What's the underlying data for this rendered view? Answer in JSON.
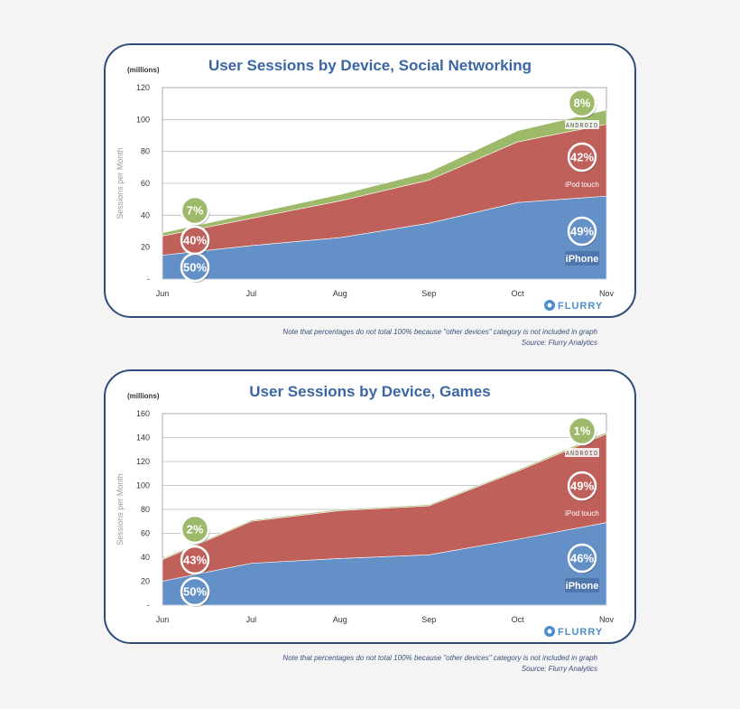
{
  "colors": {
    "iphone": "#6490c8",
    "ipod": "#c0605a",
    "android": "#9dba6a",
    "border": "#2e4d7b",
    "title": "#3b66a3"
  },
  "footnote": {
    "note": "Note that percentages  do not total 100% because  \"other devices\"  category is not included  in graph",
    "source": "Source: Flurry Analytics"
  },
  "chart_data": [
    {
      "type": "area",
      "stacked": true,
      "title": "User Sessions by Device, Social Networking",
      "unit_label": "(millions)",
      "ylabel": "Sessions per Month",
      "ylim": [
        0,
        120
      ],
      "yticks": [
        "-",
        "20",
        "40",
        "60",
        "80",
        "100",
        "120"
      ],
      "categories": [
        "Jun",
        "Jul",
        "Aug",
        "Sep",
        "Oct",
        "Nov"
      ],
      "series": [
        {
          "name": "iPhone",
          "values": [
            15,
            21,
            26,
            35,
            48,
            52
          ]
        },
        {
          "name": "iPod touch",
          "values": [
            12,
            17,
            23,
            27,
            38,
            45
          ]
        },
        {
          "name": "Android",
          "values": [
            2,
            3,
            4,
            5,
            7,
            9
          ]
        }
      ],
      "annotations": {
        "start": [
          "50%",
          "40%",
          "7%"
        ],
        "end": [
          "49%",
          "42%",
          "8%"
        ]
      },
      "legend_labels": {
        "iphone": "iPhone",
        "ipod": "iPod",
        "ipod_suffix": "touch",
        "android": "ANDROID"
      },
      "brand": "FLURRY"
    },
    {
      "type": "area",
      "stacked": true,
      "title": "User Sessions by Device, Games",
      "unit_label": "(millions)",
      "ylabel": "Sessions per Month",
      "ylim": [
        0,
        160
      ],
      "yticks": [
        "-",
        "20",
        "40",
        "60",
        "80",
        "100",
        "120",
        "140",
        "160"
      ],
      "categories": [
        "Jun",
        "Jul",
        "Aug",
        "Sep",
        "Oct",
        "Nov"
      ],
      "series": [
        {
          "name": "iPhone",
          "values": [
            20,
            35,
            39,
            42,
            55,
            69
          ]
        },
        {
          "name": "iPod touch",
          "values": [
            18,
            35,
            40,
            41,
            57,
            74
          ]
        },
        {
          "name": "Android",
          "values": [
            1,
            1,
            1,
            1,
            1,
            1.5
          ]
        }
      ],
      "annotations": {
        "start": [
          "50%",
          "43%",
          "2%"
        ],
        "end": [
          "46%",
          "49%",
          "1%"
        ]
      },
      "legend_labels": {
        "iphone": "iPhone",
        "ipod": "iPod",
        "ipod_suffix": "touch",
        "android": "ANDROID"
      },
      "brand": "FLURRY"
    }
  ]
}
